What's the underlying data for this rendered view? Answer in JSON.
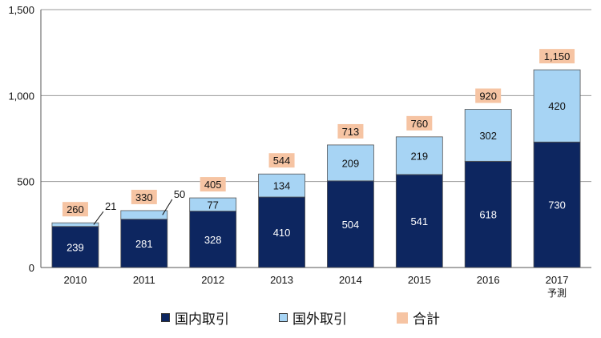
{
  "chart_data": {
    "type": "bar",
    "stacked": true,
    "categories": [
      "2010",
      "2011",
      "2012",
      "2013",
      "2014",
      "2015",
      "2016",
      "2017"
    ],
    "category_sublabels": [
      "",
      "",
      "",
      "",
      "",
      "",
      "",
      "予測"
    ],
    "series": [
      {
        "name": "国内取引",
        "values": [
          239,
          281,
          328,
          410,
          504,
          541,
          618,
          730
        ],
        "color": "#0d2660"
      },
      {
        "name": "国外取引",
        "values": [
          21,
          50,
          77,
          134,
          209,
          219,
          302,
          420
        ],
        "color": "#a7d4f4"
      }
    ],
    "totals": {
      "name": "合計",
      "values": [
        "260",
        "330",
        "405",
        "544",
        "713",
        "760",
        "920",
        "1,150"
      ],
      "color": "#f6c4a3"
    },
    "ylim": [
      0,
      1500
    ],
    "yticks": [
      0,
      500,
      1000,
      1500
    ],
    "ytick_labels": [
      "0",
      "500",
      "1,000",
      "1,500"
    ],
    "gridlines": true,
    "legend_position": "bottom",
    "title": "",
    "xlabel": "",
    "ylabel": ""
  }
}
